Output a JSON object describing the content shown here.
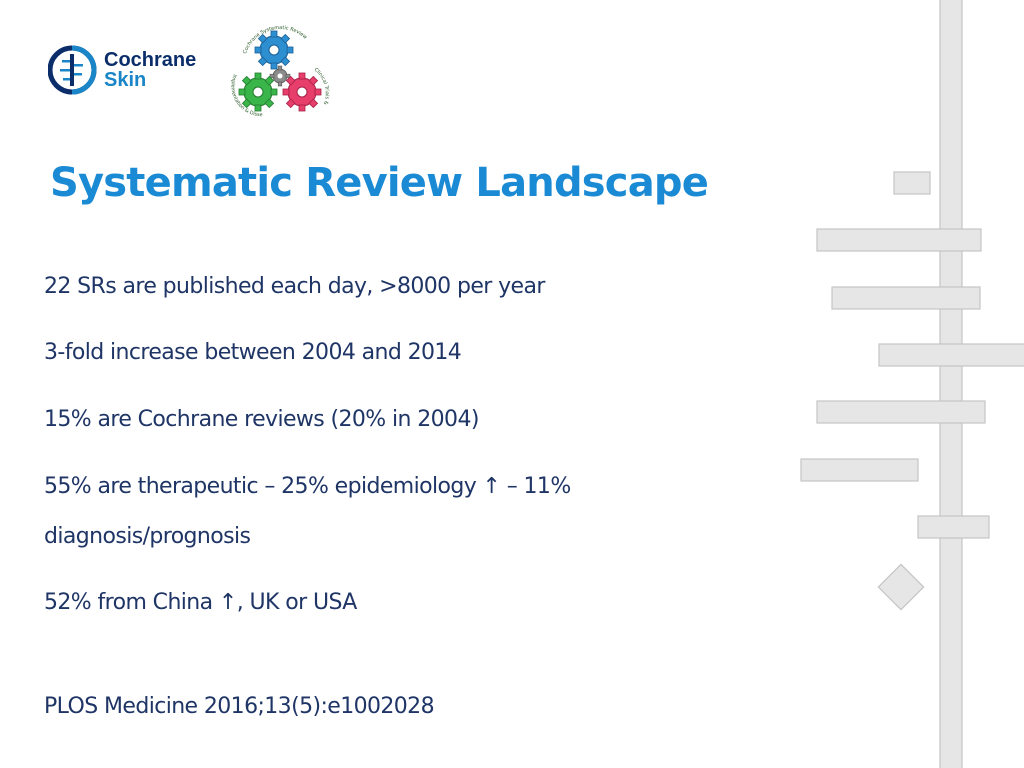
{
  "logo": {
    "line1": "Cochrane",
    "line2": "Skin"
  },
  "gears_logo": {
    "label_top": "Cochrane Systematic Review",
    "label_right": "Clinical Trials & Controversies",
    "label_left": "Implementation & Dissemination"
  },
  "title": "Systematic Review Landscape",
  "bullets": [
    "22 SRs are published each day, >8000 per year",
    "3-fold increase between 2004 and 2014",
    "15% are Cochrane reviews (20% in 2004)",
    "55% are therapeutic – 25% epidemiology ↑ – 11% diagnosis/prognosis",
    "52% from China ↑, UK or USA"
  ],
  "reference": "PLOS Medicine 2016;13(5):e1002028",
  "colors": {
    "title": "#1a8ad4",
    "body": "#1f3566",
    "logo_navy": "#0b2e6b",
    "logo_blue": "#1a86c8",
    "deco_fill": "#e6e6e6",
    "deco_stroke": "#c4c4c4"
  }
}
